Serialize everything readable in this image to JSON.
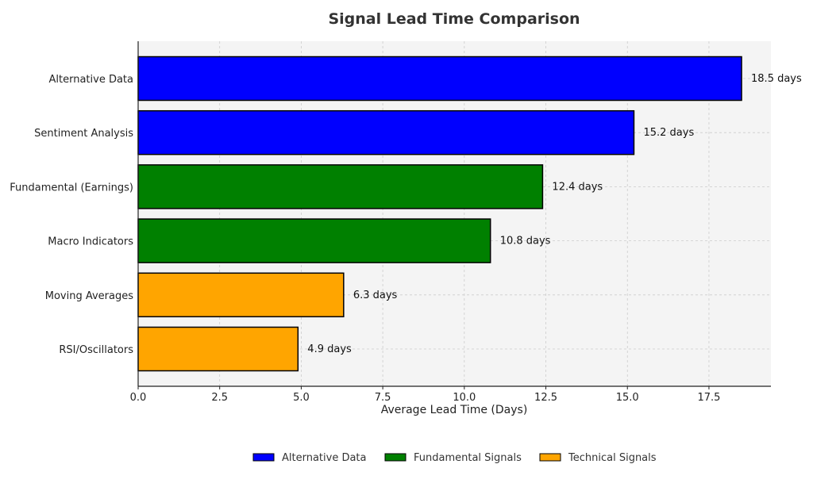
{
  "chart_data": {
    "type": "bar",
    "orientation": "horizontal",
    "title": "Signal Lead Time Comparison",
    "xlabel": "Average Lead Time (Days)",
    "ylabel": "",
    "xlim": [
      0,
      19.4
    ],
    "xticks": [
      "0.0",
      "2.5",
      "5.0",
      "7.5",
      "10.0",
      "12.5",
      "15.0",
      "17.5"
    ],
    "grid": true,
    "legend_position": "bottom-center",
    "categories": [
      "Alternative Data",
      "Sentiment Analysis",
      "Fundamental (Earnings)",
      "Macro Indicators",
      "Moving Averages",
      "RSI/Oscillators"
    ],
    "values": [
      18.5,
      15.2,
      12.4,
      10.8,
      6.3,
      4.9
    ],
    "value_labels": [
      "18.5 days",
      "15.2 days",
      "12.4 days",
      "10.8 days",
      "6.3 days",
      "4.9 days"
    ],
    "groups": [
      "Alternative Data",
      "Alternative Data",
      "Fundamental Signals",
      "Fundamental Signals",
      "Technical Signals",
      "Technical Signals"
    ],
    "legend": [
      {
        "name": "Alternative Data",
        "color": "#0000ff"
      },
      {
        "name": "Fundamental Signals",
        "color": "#008000"
      },
      {
        "name": "Technical Signals",
        "color": "#ffa500"
      }
    ]
  }
}
